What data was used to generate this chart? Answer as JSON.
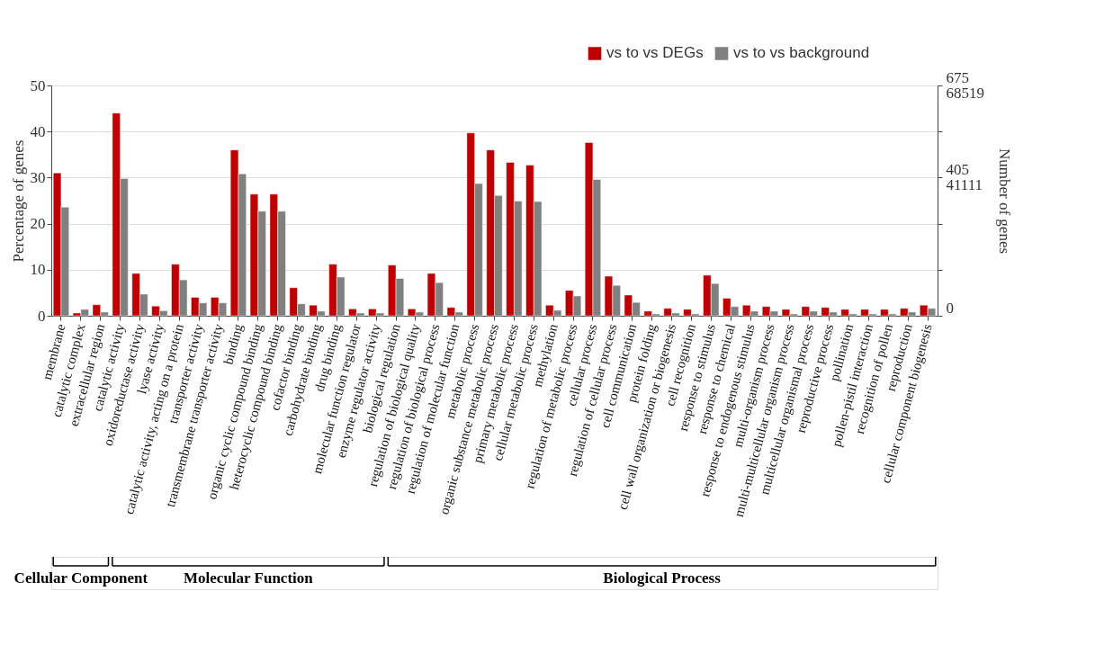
{
  "chart_data": {
    "type": "bar",
    "categories": [
      "membrane",
      "catalytic complex",
      "extracellular region",
      "catalytic activity",
      "oxidoreductase activity",
      "lyase activity",
      "catalytic activity, acting on a protein",
      "transporter activity",
      "transmembrane transporter activity",
      "binding",
      "organic cyclic compound binding",
      "heterocyclic compound binding",
      "cofactor binding",
      "carbohydrate binding",
      "drug binding",
      "molecular function regulator",
      "enzyme regulator activity",
      "biological regulation",
      "regulation of biological quality",
      "regulation of biological process",
      "regulation of molecular function",
      "metabolic process",
      "organic substance metabolic process",
      "primary metabolic process",
      "cellular metabolic process",
      "methylation",
      "regulation of metabolic process",
      "cellular process",
      "regulation of cellular process",
      "cell communication",
      "protein folding",
      "cell wall organization or biogenesis",
      "cell recognition",
      "response to stimulus",
      "response to chemical",
      "response to endogenous stimulus",
      "multi-organism process",
      "multi-multicellular organism process",
      "multicellular organismal process",
      "reproductive process",
      "pollination",
      "pollen-pistil interaction",
      "recognition of pollen",
      "reproduction",
      "cellular component biogenesis"
    ],
    "series": [
      {
        "name": "vs to vs DEGs",
        "color": "#c00000",
        "values": [
          31,
          0.6,
          2.4,
          44,
          9.2,
          2.1,
          11.2,
          4.0,
          4.0,
          36,
          26.4,
          26.4,
          6.1,
          2.3,
          11.2,
          1.5,
          1.5,
          11,
          1.5,
          9.2,
          1.8,
          39.7,
          36,
          33.3,
          32.7,
          2.3,
          5.5,
          37.6,
          8.6,
          4.5,
          1.0,
          1.6,
          1.4,
          8.8,
          3.8,
          2.3,
          2.0,
          1.4,
          2.0,
          1.8,
          1.4,
          1.4,
          1.4,
          1.6,
          2.3
        ]
      },
      {
        "name": "vs to vs background",
        "color": "#808080",
        "values": [
          23.6,
          1.4,
          0.8,
          29.8,
          4.7,
          1.1,
          7.8,
          2.8,
          2.8,
          30.8,
          22.7,
          22.7,
          2.6,
          1.0,
          8.4,
          0.6,
          0.6,
          8.1,
          0.8,
          7.2,
          0.8,
          28.7,
          26.1,
          24.9,
          24.8,
          1.2,
          4.3,
          29.6,
          6.6,
          2.9,
          0.4,
          0.6,
          0.4,
          7.0,
          2.0,
          1.0,
          1.0,
          0.4,
          1.0,
          0.8,
          0.4,
          0.4,
          0.4,
          0.8,
          1.6
        ]
      }
    ],
    "ylim": [
      0,
      50
    ],
    "yticks": [
      0,
      10,
      20,
      30,
      40,
      50
    ],
    "y2lim": [
      0,
      675
    ],
    "y2ticks": [
      0,
      {
        "value": 135,
        "label": null
      },
      {
        "value": 270,
        "label": null
      },
      405,
      {
        "value": 540,
        "label": null
      },
      675
    ],
    "y3lim": [
      0,
      68519
    ],
    "y3ticks": [
      41111,
      68519
    ],
    "ylabel": "Percentage of genes",
    "y2label": "Number of genes",
    "grid": "y",
    "legend": "top right",
    "annotations": [
      "Cellular Component",
      "Molecular Function",
      "Biological Process"
    ]
  }
}
